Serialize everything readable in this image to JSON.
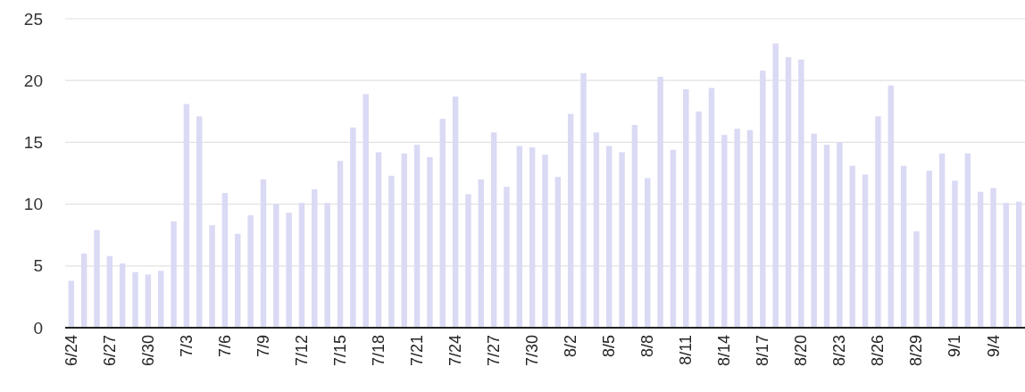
{
  "chart_data": {
    "type": "bar",
    "categories": [
      "6/24",
      null,
      null,
      "6/27",
      null,
      null,
      "6/30",
      null,
      null,
      "7/3",
      null,
      null,
      "7/6",
      null,
      null,
      "7/9",
      null,
      null,
      "7/12",
      null,
      null,
      "7/15",
      null,
      null,
      "7/18",
      null,
      null,
      "7/21",
      null,
      null,
      "7/24",
      null,
      null,
      "7/27",
      null,
      null,
      "7/30",
      null,
      null,
      "8/2",
      null,
      null,
      "8/5",
      null,
      null,
      "8/8",
      null,
      null,
      "8/11",
      null,
      null,
      "8/14",
      null,
      null,
      "8/17",
      null,
      null,
      "8/20",
      null,
      null,
      "8/23",
      null,
      null,
      "8/26",
      null,
      null,
      "8/29",
      null,
      null,
      "9/1",
      null,
      null,
      "9/4",
      null,
      null
    ],
    "values": [
      3.8,
      6,
      7.9,
      5.8,
      5.2,
      4.5,
      4.3,
      4.6,
      8.6,
      18.1,
      17.1,
      8.3,
      10.9,
      7.6,
      9.1,
      12,
      10,
      9.3,
      10.1,
      11.2,
      10.1,
      13.5,
      16.2,
      18.9,
      14.2,
      12.3,
      14.1,
      14.8,
      13.8,
      16.9,
      18.7,
      10.8,
      12,
      15.8,
      11.4,
      14.7,
      14.6,
      14,
      12.2,
      17.3,
      20.6,
      15.8,
      14.7,
      14.2,
      16.4,
      12.1,
      20.3,
      14.4,
      19.3,
      17.5,
      19.4,
      15.6,
      16.1,
      16,
      20.8,
      23,
      21.9,
      21.7,
      15.7,
      14.8,
      15,
      13.1,
      12.4,
      17.1,
      19.6,
      13.1,
      7.8,
      12.7,
      14.1,
      11.9,
      14.1,
      11,
      11.3,
      10.1,
      10.2
    ],
    "color": "#dadaf5",
    "ylim": [
      0,
      25
    ],
    "yticks": [
      0,
      5,
      10,
      15,
      20,
      25
    ],
    "grid": "y"
  }
}
